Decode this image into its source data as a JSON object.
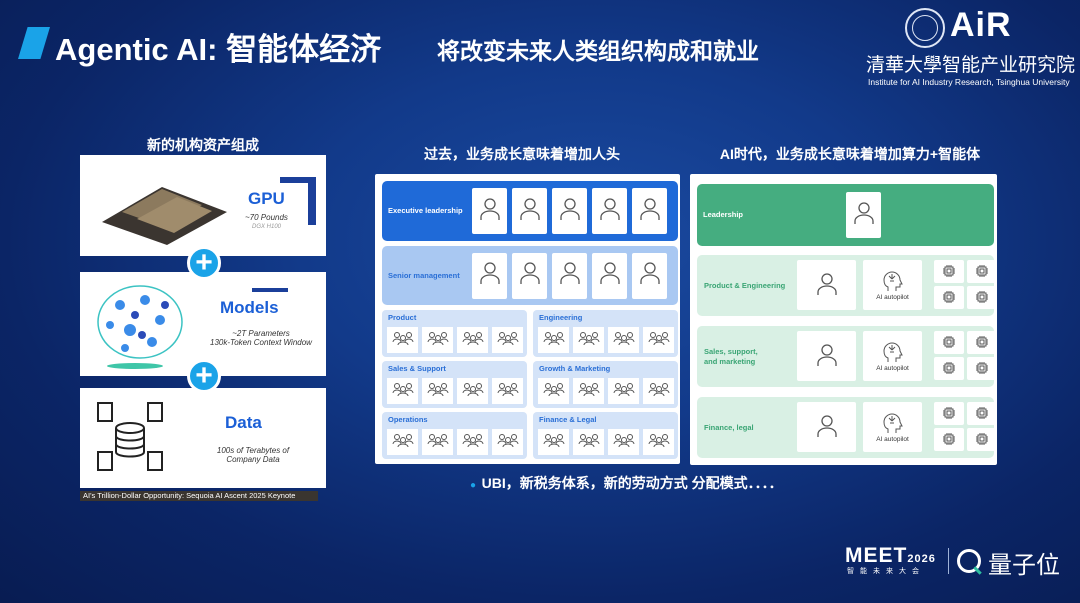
{
  "header": {
    "title": "Agentic AI: 智能体经济",
    "subtitle": "将改变未来人类组织构成和就业"
  },
  "logo": {
    "brand": "AiR",
    "institute_cn": "清華大學智能产业研究院",
    "institute_en": "Institute for AI Industry Research, Tsinghua University"
  },
  "left": {
    "heading": "新的机构资产组成",
    "gpu": {
      "title": "GPU",
      "line1": "~70 Pounds",
      "line2": "DGX H100"
    },
    "models": {
      "title": "Models",
      "line1": "~2T Parameters",
      "line2": "130k-Token Context Window"
    },
    "data": {
      "title": "Data",
      "line1": "100s of Terabytes of",
      "line2": "Company Data"
    },
    "caption": "AI's Trillion-Dollar Opportunity: Sequoia AI Ascent 2025 Keynote"
  },
  "past": {
    "heading": "过去，业务成长意味着增加人头",
    "executive": "Executive leadership",
    "senior": "Senior management",
    "departments": [
      "Product",
      "Engineering",
      "Sales & Support",
      "Growth & Marketing",
      "Operations",
      "Finance & Legal"
    ]
  },
  "ai_era": {
    "heading": "AI时代，业务成长意味着增加算力+智能体",
    "leadership": "Leadership",
    "rows": [
      "Product & Engineering",
      "Sales, support,\nand marketing",
      "Finance, legal"
    ],
    "autopilot_label": "AI autopilot"
  },
  "bullet": "UBI，新税务体系，新的劳动方式 分配模式．．．．",
  "footer": {
    "event": "MEET",
    "year": "2026",
    "event_cn": "智能未来大会",
    "media": "量子位"
  },
  "colors": {
    "accent": "#1aa3e8",
    "exec_blue": "#1f6ad8",
    "senior_blue": "#a9c8f2",
    "dept_blue": "#d4e3f8",
    "leader_green": "#45ad80",
    "row_green": "#d9f0e4"
  }
}
